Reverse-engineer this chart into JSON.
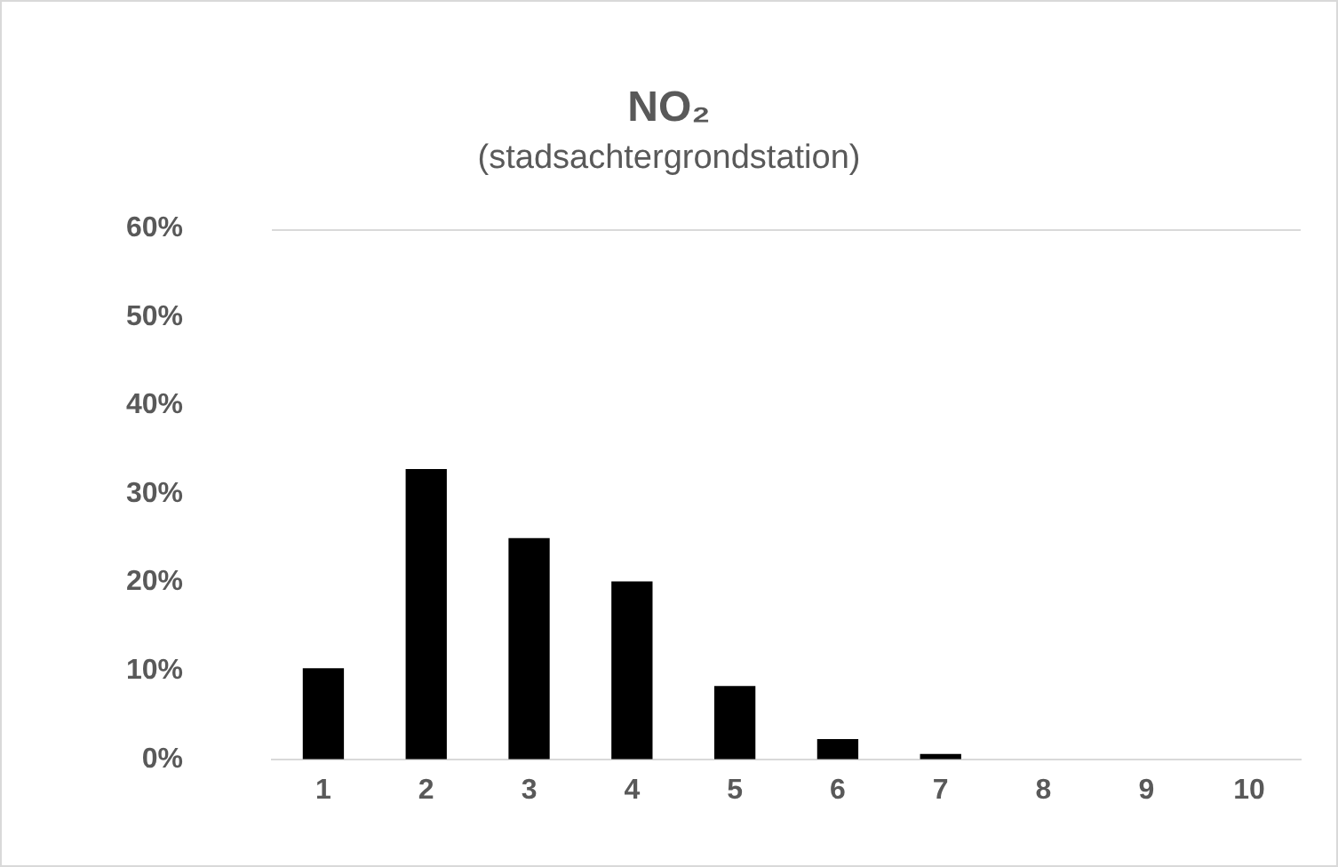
{
  "chart_data": {
    "type": "bar",
    "title": "NO₂",
    "subtitle": "(stadsachtergrondstation)",
    "categories": [
      "1",
      "2",
      "3",
      "4",
      "5",
      "6",
      "7",
      "8",
      "9",
      "10"
    ],
    "values": [
      10.3,
      32.8,
      25.0,
      20.1,
      8.3,
      2.3,
      0.6,
      0,
      0,
      0
    ],
    "color": "#000000",
    "ylim": [
      0,
      60
    ],
    "yticks": [
      {
        "value": 0,
        "label": "0%"
      },
      {
        "value": 10,
        "label": "10%"
      },
      {
        "value": 20,
        "label": "20%"
      },
      {
        "value": 30,
        "label": "30%"
      },
      {
        "value": 40,
        "label": "40%"
      },
      {
        "value": 50,
        "label": "50%"
      },
      {
        "value": 60,
        "label": "60%"
      }
    ],
    "grid": false,
    "legend": false
  }
}
